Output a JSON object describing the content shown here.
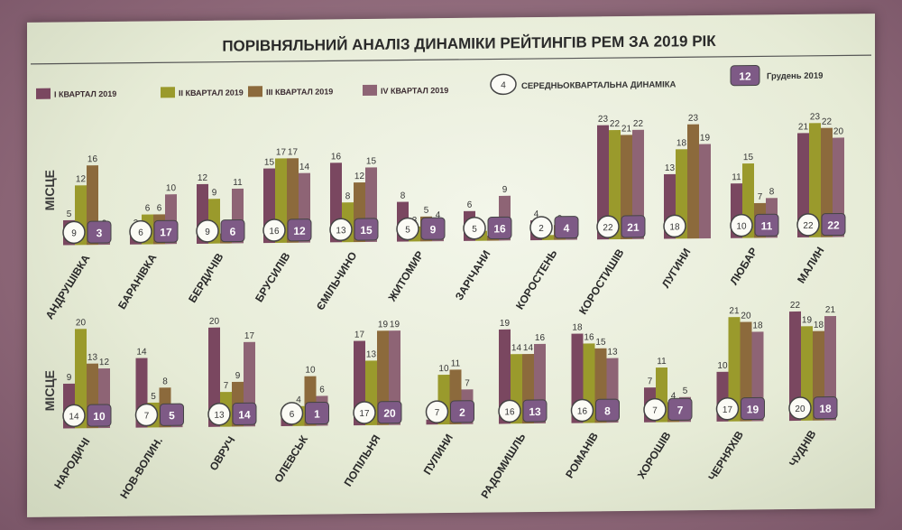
{
  "chart_data": {
    "type": "bar",
    "title": "ПОРІВНЯЛЬНИЙ АНАЛІЗ ДИНАМІКИ РЕЙТИНГІВ РЕМ ЗА 2019 РІК",
    "ylabel": "МІСЦЕ",
    "legend": {
      "series": [
        "І КВАРТАЛ 2019",
        "ІІ КВАРТАЛ 2019",
        "ІІІ КВАРТАЛ 2019",
        "IV КВАРТАЛ 2019"
      ],
      "avg_label": "СЕРЕДНЬОКВАРТАЛЬНА ДИНАМІКА",
      "avg_sample": "4",
      "dec_label": "Грудень 2019",
      "dec_sample": "12"
    },
    "colors": [
      "#7a4760",
      "#9a9a2c",
      "#8c6a3c",
      "#8e6475"
    ],
    "ylim": [
      0,
      25
    ],
    "groups": [
      {
        "name": "АНДРУШІВКА",
        "values": [
          5,
          12,
          16,
          3
        ],
        "avg": 9,
        "dec": 3
      },
      {
        "name": "БАРАНІВКА",
        "values": [
          3,
          6,
          6,
          10
        ],
        "avg": 6,
        "dec": 17
      },
      {
        "name": "БЕРДИЧІВ",
        "values": [
          12,
          9,
          2,
          11
        ],
        "avg": 9,
        "dec": 6
      },
      {
        "name": "БРУСИЛІВ",
        "values": [
          15,
          17,
          17,
          14
        ],
        "avg": 16,
        "dec": 12
      },
      {
        "name": "ЄМІЛЬЧИНО",
        "values": [
          16,
          8,
          12,
          15
        ],
        "avg": 13,
        "dec": 15
      },
      {
        "name": "ЖИТОМИР",
        "values": [
          8,
          3,
          5,
          4
        ],
        "avg": 5,
        "dec": 9
      },
      {
        "name": "ЗАРІЧАНИ",
        "values": [
          6,
          2,
          1,
          9
        ],
        "avg": 5,
        "dec": 16
      },
      {
        "name": "КОРОСТЕНЬ",
        "values": [
          4,
          1,
          3,
          1
        ],
        "avg": 2,
        "dec": 4
      },
      {
        "name": "КОРОСТИШІВ",
        "values": [
          23,
          22,
          21,
          22
        ],
        "avg": 22,
        "dec": 21
      },
      {
        "name": "ЛУГИНИ",
        "values": [
          13,
          18,
          23,
          19
        ],
        "avg": 18,
        "dec": null
      },
      {
        "name": "ЛЮБАР",
        "values": [
          11,
          15,
          7,
          8
        ],
        "avg": 10,
        "dec": 11
      },
      {
        "name": "МАЛИН",
        "values": [
          21,
          23,
          22,
          20
        ],
        "avg": 22,
        "dec": 22
      },
      {
        "name": "НАРОДИЧІ",
        "values": [
          9,
          20,
          13,
          12
        ],
        "avg": 14,
        "dec": 10
      },
      {
        "name": "НОВ-ВОЛИН.",
        "values": [
          14,
          5,
          8,
          2
        ],
        "avg": 7,
        "dec": 5
      },
      {
        "name": "ОВРУЧ",
        "values": [
          20,
          7,
          9,
          17
        ],
        "avg": 13,
        "dec": 14
      },
      {
        "name": "ОЛЕВСЬК",
        "values": [
          2,
          4,
          10,
          6
        ],
        "avg": 6,
        "dec": 1
      },
      {
        "name": "ПОПІЛЬНЯ",
        "values": [
          17,
          13,
          19,
          19
        ],
        "avg": 17,
        "dec": 20
      },
      {
        "name": "ПУЛИНИ",
        "values": [
          1,
          10,
          11,
          7
        ],
        "avg": 7,
        "dec": 2
      },
      {
        "name": "РАДОМИШЛЬ",
        "values": [
          19,
          14,
          14,
          16
        ],
        "avg": 16,
        "dec": 13
      },
      {
        "name": "РОМАНІВ",
        "values": [
          18,
          16,
          15,
          13
        ],
        "avg": 16,
        "dec": 8
      },
      {
        "name": "ХОРОШІВ",
        "values": [
          7,
          11,
          4,
          5
        ],
        "avg": 7,
        "dec": 7
      },
      {
        "name": "ЧЕРНЯХІВ",
        "values": [
          10,
          21,
          20,
          18
        ],
        "avg": 17,
        "dec": 19
      },
      {
        "name": "ЧУДНІВ",
        "values": [
          22,
          19,
          18,
          21
        ],
        "avg": 20,
        "dec": 18
      }
    ]
  }
}
